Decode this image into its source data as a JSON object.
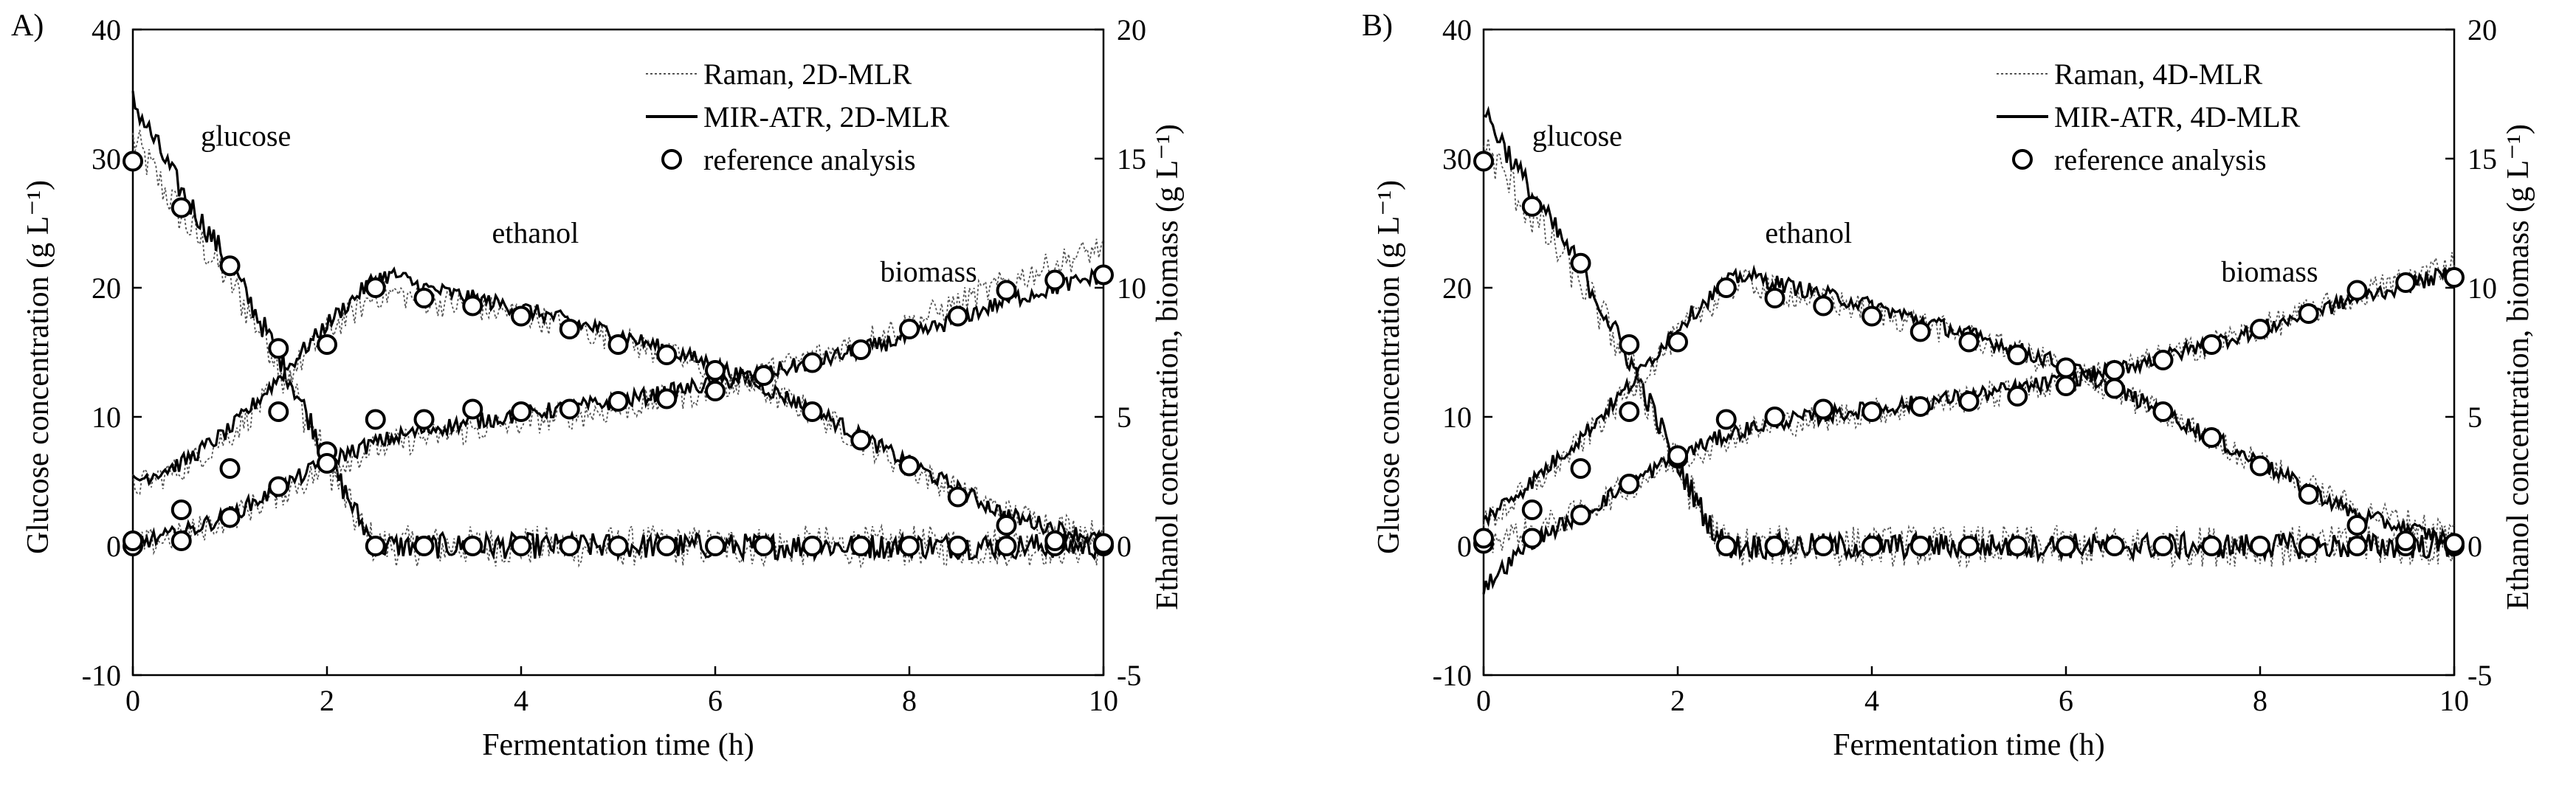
{
  "chart_data": [
    {
      "type": "line",
      "panel_label": "A)",
      "xlabel": "Fermentation time (h)",
      "ylabel_left": "Glucose concentration (g L⁻¹)",
      "ylabel_right": "Ethanol concentration, biomass (g L⁻¹)",
      "xlim": [
        0,
        10
      ],
      "ylim_left": [
        -10,
        40
      ],
      "ylim_right": [
        -5,
        20
      ],
      "xticks": [
        "0",
        "2",
        "4",
        "6",
        "8",
        "10"
      ],
      "yticks_left": [
        "-10",
        "0",
        "10",
        "20",
        "30",
        "40"
      ],
      "yticks_right": [
        "-5",
        "0",
        "5",
        "10",
        "15",
        "20"
      ],
      "legend": {
        "position": "top-right",
        "entries": [
          "Raman, 2D-MLR",
          "MIR-ATR, 2D-MLR",
          "reference analysis"
        ]
      },
      "annotations": [
        {
          "text": "glucose",
          "x": 0.7,
          "y": 31
        },
        {
          "text": "ethanol",
          "x": 3.7,
          "y": 23.5
        },
        {
          "text": "biomass",
          "x": 7.7,
          "y": 20.5
        }
      ],
      "series": [
        {
          "name": "glucose",
          "axis": "left",
          "reference": {
            "x": [
              0,
              0.5,
              1,
              1.5,
              2,
              2.5,
              3,
              3.5,
              4,
              4.5,
              5,
              5.5,
              6,
              6.5,
              7,
              7.5,
              8,
              8.5,
              9,
              9.5,
              10
            ],
            "y": [
              29.8,
              26.2,
              21.7,
              15.3,
              7.3,
              0,
              0,
              0,
              0,
              0,
              0,
              0,
              0,
              0,
              0,
              0,
              0,
              0,
              0,
              0,
              0
            ]
          },
          "mir_atr": {
            "x": [
              0,
              0.5,
              1,
              1.5,
              2,
              2.3,
              2.5,
              3,
              4,
              5,
              6,
              7,
              8,
              9,
              10
            ],
            "y": [
              34.5,
              27.5,
              21.8,
              14.8,
              7.0,
              2.5,
              0,
              0,
              0,
              0,
              0,
              0,
              0,
              0,
              0
            ]
          },
          "raman": {
            "x": [
              0,
              0.5,
              1,
              1.5,
              2,
              2.3,
              2.5,
              3,
              4,
              5,
              6,
              7,
              8,
              9,
              10
            ],
            "y": [
              31.5,
              25.5,
              20.5,
              14.5,
              6.5,
              2.0,
              0,
              0,
              0,
              0,
              0,
              0,
              0,
              0,
              0
            ]
          }
        },
        {
          "name": "ethanol",
          "axis": "right",
          "reference": {
            "x": [
              0,
              0.5,
              1,
              1.5,
              2,
              2.5,
              3,
              3.5,
              4,
              4.5,
              5,
              5.5,
              6,
              6.5,
              7,
              7.5,
              8,
              8.5,
              9,
              9.5,
              10
            ],
            "y": [
              0,
              1.4,
              3.0,
              5.2,
              7.8,
              10.0,
              9.6,
              9.3,
              8.9,
              8.4,
              7.8,
              7.4,
              6.8,
              6.6,
              5.2,
              4.1,
              3.1,
              1.9,
              0.8,
              0.2,
              0.1
            ]
          },
          "mir_atr": {
            "x": [
              0,
              0.5,
              1,
              1.5,
              2,
              2.5,
              2.7,
              3,
              4,
              5,
              6,
              7,
              8,
              9,
              10
            ],
            "y": [
              2.5,
              3.2,
              4.5,
              6.5,
              8.6,
              10.4,
              10.5,
              10.0,
              9.2,
              8.2,
              7.0,
              5.3,
              3.2,
              1.2,
              0.2
            ]
          },
          "raman": {
            "x": [
              0,
              0.5,
              1,
              1.5,
              2,
              2.5,
              2.7,
              3,
              4,
              5,
              6,
              7,
              8,
              9,
              10
            ],
            "y": [
              2.3,
              3.0,
              4.3,
              6.2,
              8.3,
              9.7,
              9.8,
              9.5,
              9.0,
              8.0,
              6.8,
              5.2,
              3.0,
              1.3,
              0.4
            ]
          }
        },
        {
          "name": "biomass",
          "axis": "right",
          "reference": {
            "x": [
              0,
              0.5,
              1,
              1.5,
              2,
              2.5,
              3,
              3.5,
              4,
              4.5,
              5,
              5.5,
              6,
              6.5,
              7,
              7.5,
              8,
              8.5,
              9,
              9.5,
              10
            ],
            "y": [
              0.2,
              0.2,
              1.1,
              2.3,
              3.2,
              4.9,
              4.9,
              5.3,
              5.2,
              5.3,
              5.6,
              5.7,
              6.0,
              6.6,
              7.1,
              7.6,
              8.4,
              8.9,
              9.9,
              10.3,
              10.5
            ]
          },
          "mir_atr": {
            "x": [
              0,
              0.5,
              1,
              1.5,
              2,
              2.5,
              3,
              4,
              5,
              6,
              7,
              8,
              9,
              10
            ],
            "y": [
              0.1,
              0.5,
              1.2,
              2.2,
              3.3,
              4.0,
              4.5,
              5.1,
              5.6,
              6.3,
              7.1,
              8.1,
              9.5,
              10.5
            ]
          },
          "raman": {
            "x": [
              0,
              0.5,
              1,
              1.5,
              2,
              2.5,
              3,
              4,
              5,
              6,
              7,
              8,
              9,
              10
            ],
            "y": [
              0.0,
              0.4,
              1.1,
              2.0,
              3.0,
              3.8,
              4.2,
              4.8,
              5.3,
              6.1,
              7.3,
              8.6,
              10.2,
              11.6
            ]
          }
        }
      ]
    },
    {
      "type": "line",
      "panel_label": "B)",
      "xlabel": "Fermentation time (h)",
      "ylabel_left": "Glucose concentration (g L⁻¹)",
      "ylabel_right": "Ethanol concentration, biomass (g L⁻¹)",
      "xlim": [
        0,
        10
      ],
      "ylim_left": [
        -10,
        40
      ],
      "ylim_right": [
        -5,
        20
      ],
      "xticks": [
        "0",
        "2",
        "4",
        "6",
        "8",
        "10"
      ],
      "yticks_left": [
        "-10",
        "0",
        "10",
        "20",
        "30",
        "40"
      ],
      "yticks_right": [
        "-5",
        "0",
        "5",
        "10",
        "15",
        "20"
      ],
      "legend": {
        "position": "top-right",
        "entries": [
          "Raman, 4D-MLR",
          "MIR-ATR, 4D-MLR",
          "reference analysis"
        ]
      },
      "annotations": [
        {
          "text": "glucose",
          "x": 0.5,
          "y": 31
        },
        {
          "text": "ethanol",
          "x": 2.9,
          "y": 23.5
        },
        {
          "text": "biomass",
          "x": 7.6,
          "y": 20.5
        }
      ],
      "series": [
        {
          "name": "glucose",
          "axis": "left",
          "reference": {
            "x": [
              0,
              0.5,
              1,
              1.5,
              2,
              2.5,
              3,
              3.5,
              4,
              4.5,
              5,
              5.5,
              6,
              6.5,
              7,
              7.5,
              8,
              8.5,
              9,
              9.5,
              10
            ],
            "y": [
              29.8,
              26.3,
              21.9,
              15.6,
              6.8,
              0,
              0,
              0,
              0,
              0,
              0,
              0,
              0,
              0,
              0,
              0,
              0,
              0,
              0,
              0,
              0
            ]
          },
          "mir_atr": {
            "x": [
              0,
              0.5,
              1,
              1.5,
              2,
              2.3,
              2.5,
              3,
              4,
              5,
              6,
              7,
              8,
              9,
              10
            ],
            "y": [
              33.8,
              27.2,
              21.5,
              14.5,
              6.3,
              2.0,
              0,
              0,
              0,
              0,
              0,
              0,
              0,
              0,
              0
            ]
          },
          "raman": {
            "x": [
              0,
              0.5,
              1,
              1.5,
              2,
              2.3,
              2.5,
              3,
              4,
              5,
              6,
              7,
              8,
              9,
              10
            ],
            "y": [
              31.0,
              25.5,
              20.5,
              14.2,
              6.0,
              1.8,
              0,
              0,
              0,
              0,
              0,
              0,
              0,
              0,
              0
            ]
          }
        },
        {
          "name": "ethanol",
          "axis": "right",
          "reference": {
            "x": [
              0,
              0.5,
              1,
              1.5,
              2,
              2.5,
              3,
              3.5,
              4,
              4.5,
              5,
              5.5,
              6,
              6.5,
              7,
              7.5,
              8,
              8.5,
              9,
              9.5,
              10
            ],
            "y": [
              0.1,
              1.4,
              3.0,
              5.2,
              7.9,
              10.0,
              9.6,
              9.3,
              8.9,
              8.3,
              7.9,
              7.4,
              6.9,
              6.1,
              5.2,
              4.2,
              3.1,
              2.0,
              0.8,
              0.2,
              0.1
            ]
          },
          "mir_atr": {
            "x": [
              0,
              0.5,
              1,
              1.5,
              2,
              2.5,
              2.7,
              3,
              4,
              5,
              6,
              7,
              8,
              9,
              10
            ],
            "y": [
              1.0,
              2.5,
              4.2,
              6.2,
              8.5,
              10.2,
              10.5,
              10.2,
              9.3,
              8.2,
              7.0,
              5.2,
              3.2,
              1.2,
              0.2
            ]
          },
          "raman": {
            "x": [
              0,
              0.5,
              1,
              1.5,
              2,
              2.5,
              2.7,
              3,
              4,
              5,
              6,
              7,
              8,
              9,
              10
            ],
            "y": [
              0.8,
              2.3,
              4.0,
              6.0,
              8.2,
              9.9,
              10.2,
              9.9,
              9.1,
              8.1,
              6.9,
              5.1,
              3.2,
              1.4,
              0.5
            ]
          }
        },
        {
          "name": "biomass",
          "axis": "right",
          "reference": {
            "x": [
              0,
              0.5,
              1,
              1.5,
              2,
              2.5,
              3,
              3.5,
              4,
              4.5,
              5,
              5.5,
              6,
              6.5,
              7,
              7.5,
              8,
              8.5,
              9,
              9.5,
              10
            ],
            "y": [
              0.3,
              0.3,
              1.2,
              2.4,
              3.5,
              4.9,
              5.0,
              5.3,
              5.2,
              5.4,
              5.6,
              5.8,
              6.2,
              6.8,
              7.2,
              7.8,
              8.4,
              9.0,
              9.9,
              10.2,
              10.4
            ]
          },
          "mir_atr": {
            "x": [
              0,
              0.5,
              1,
              1.5,
              2,
              2.5,
              3,
              4,
              5,
              6,
              7,
              8,
              9,
              10
            ],
            "y": [
              -1.6,
              0.2,
              1.2,
              2.4,
              3.5,
              4.3,
              4.8,
              5.3,
              5.8,
              6.4,
              7.3,
              8.4,
              9.6,
              10.6
            ]
          },
          "raman": {
            "x": [
              0,
              0.5,
              1,
              1.5,
              2,
              2.5,
              3,
              4,
              5,
              6,
              7,
              8,
              9,
              10
            ],
            "y": [
              0.2,
              0.6,
              1.3,
              2.3,
              3.3,
              4.2,
              4.7,
              5.2,
              5.7,
              6.3,
              7.3,
              8.4,
              9.7,
              11.0
            ]
          }
        }
      ]
    }
  ]
}
